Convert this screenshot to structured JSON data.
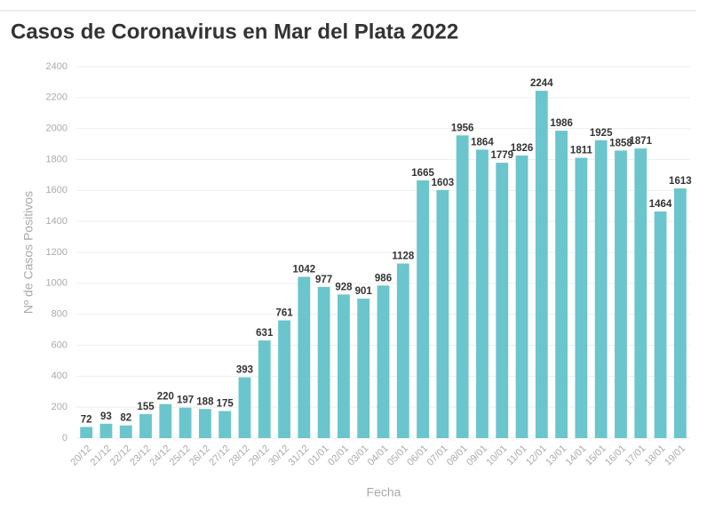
{
  "chart_data": {
    "type": "bar",
    "title": "Casos de Coronavirus en Mar del Plata 2022",
    "x_label": "Fecha",
    "y_label": "Nº de Casos Positivos",
    "categories": [
      "20/12",
      "21/12",
      "22/12",
      "23/12",
      "24/12",
      "25/12",
      "26/12",
      "27/12",
      "28/12",
      "29/12",
      "30/12",
      "31/12",
      "01/01",
      "02/01",
      "03/01",
      "04/01",
      "05/01",
      "06/01",
      "07/01",
      "08/01",
      "09/01",
      "10/01",
      "11/01",
      "12/01",
      "13/01",
      "14/01",
      "15/01",
      "16/01",
      "17/01",
      "18/01",
      "19/01"
    ],
    "values": [
      72,
      93,
      82,
      155,
      220,
      197,
      188,
      175,
      393,
      631,
      761,
      1042,
      977,
      928,
      901,
      986,
      1128,
      1665,
      1603,
      1956,
      1864,
      1779,
      1826,
      2244,
      1986,
      1811,
      1925,
      1858,
      1871,
      1464,
      1613
    ],
    "color": "#6bc5cc",
    "ylim": [
      0,
      2400
    ],
    "yticks": [
      0,
      200,
      400,
      600,
      800,
      1000,
      1200,
      1400,
      1600,
      1800,
      2000,
      2200,
      2400
    ],
    "grid": true
  }
}
